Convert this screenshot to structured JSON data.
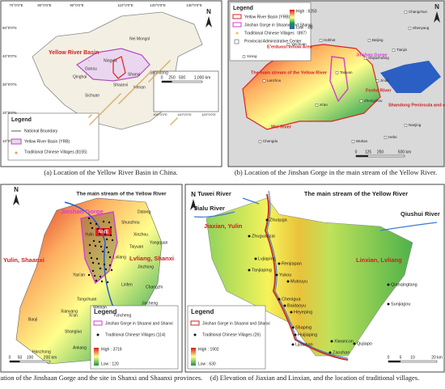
{
  "panel_a": {
    "caption": "(a) Location of the Yellow River Basin in China.",
    "north": "N",
    "lon_ticks": [
      "70°0'0\"E",
      "80°0'0\"E",
      "90°0'0\"E",
      "110°0'0\"E",
      "120°0'0\"E",
      "130°0'0\"E"
    ],
    "lat_ticks": [
      "50°0'0\"N",
      "40°0'0\"N",
      "30°0'0\"N",
      "20°0'0\"N",
      "10°0'0\"N"
    ],
    "labels": [
      "Yellow River Basin",
      "Nei Mongol",
      "Gansu",
      "Qinghai",
      "Sichuan",
      "Shaanxi",
      "Shanxi",
      "Ningxia",
      "Henan",
      "Shandong"
    ],
    "inset_ticks": [
      "100°0'0\"E",
      "110°0'0\"E",
      "120°0'0\"E"
    ],
    "scale": [
      "0",
      "250",
      "500",
      "1,000 km"
    ],
    "legend": {
      "title": "Legend",
      "items": [
        "National Boundary",
        "Yellow River Basin (YRB)",
        "Traditional Chinese Villages (8155)"
      ]
    }
  },
  "panel_b": {
    "caption": "(b) Location of the Jinshan Gorge in the main stream of the Yellow River.",
    "north": "N",
    "legend": {
      "title": "Legend",
      "items": [
        "Yellow River Basin (YRB)",
        "Jinshan Gorge in Shaanxi and Shanxi",
        "Traditional Chinese Villages（897）",
        "Provincial Administrative Center"
      ],
      "high": "High : 6250",
      "low": "Low : -88"
    },
    "labels": [
      "E'erduosi Inflow Area",
      "The main stream of the Yellow River",
      "Jinshan Gorge",
      "Fenhe River",
      "Wei River",
      "Shandong Peninsula and coastal areas"
    ],
    "cities": [
      "Changchun",
      "Shenyang",
      "Beijing",
      "Tianjin",
      "Shijiazhuang",
      "Taiyuan",
      "Jinan",
      "Zhengzhou",
      "Nanjing",
      "Hefei",
      "Chengdu",
      "Xining",
      "Lanzhou",
      "Yinchuan",
      "Hohhot",
      "Xi'an",
      "Wuhan"
    ],
    "scale": [
      "0",
      "125",
      "250",
      "500 km"
    ]
  },
  "panel_c": {
    "caption": "(c) Location of the Jinshaan Gorge and the site in Shanxi and Shaanxi provinces.",
    "north": "N",
    "labels": [
      "The main stream of the Yellow River",
      "Jinshan Gorge",
      "Yulin, Shaanxi",
      "Lvliang, Shanxi",
      "SITE"
    ],
    "cities": [
      "Datong",
      "Shuozhou",
      "Xinzhou",
      "Yangquan",
      "Taiyuan",
      "Jinzhong",
      "Changzhi",
      "Jincheng",
      "Linfen",
      "Yuncheng",
      "Yan'an",
      "Tongchuan",
      "Weinan",
      "Xi'an",
      "Baoji",
      "Shangluo",
      "Ankang",
      "Hanzhong",
      "Xianyang",
      "Yulin",
      "Lvliang"
    ],
    "legend": {
      "title": "Legend",
      "items": [
        "Jinshan Gorge in Shaanxi and Shanxi",
        "Traditional Chinese Villages (114)"
      ],
      "high": "High : 3719",
      "low": "Low : 120"
    },
    "scale": [
      "0",
      "50",
      "100",
      "200 km"
    ]
  },
  "panel_d": {
    "caption": "(d) Elevation of Jiaxian and Linxian, and the location of traditional villages.",
    "north": "N",
    "labels": [
      "Tuwei River",
      "Jialu River",
      "The main stream of the Yellow River",
      "Qiushui River",
      "Jiaxian, Yulin",
      "Linxian, Lvliang"
    ],
    "villages": [
      "Zhuquga",
      "Zhuguanzai",
      "Lvjiaping",
      "Renjiapan",
      "Tanjiaping",
      "Yukou",
      "Mutouyu",
      "Chenigua",
      "Baidaoyu",
      "Heyeping",
      "Qianqingtang",
      "Sunjiagou",
      "Shaping",
      "Huijiaping",
      "Xiwancun",
      "Qujiapo",
      "Lijiashan",
      "Zaoshan"
    ],
    "legend": {
      "title": "Legend",
      "items": [
        "Jinshan Gorge in Shaanxi and Shanxi",
        "Traditional Chinese Villages (26)"
      ],
      "high": "High : 1902",
      "low": "Low : 630"
    },
    "scale": [
      "0",
      "5",
      "10",
      "20 km"
    ]
  }
}
